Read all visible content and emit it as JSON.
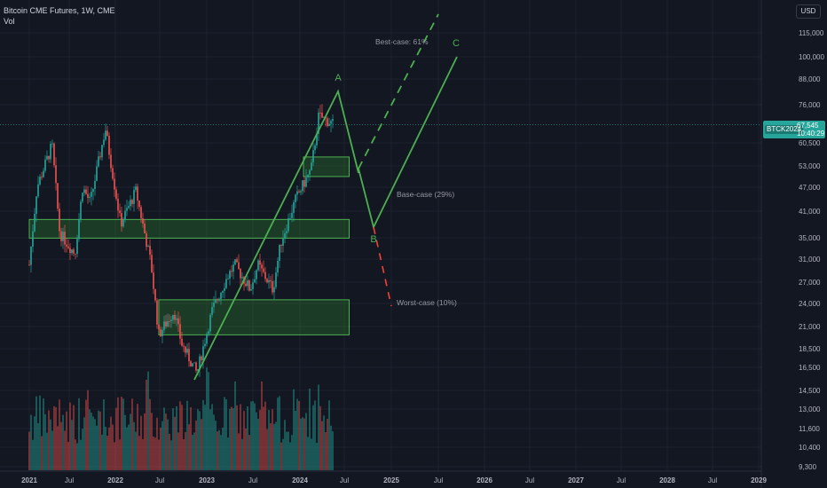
{
  "header": {
    "title": "Bitcoin CME Futures, 1W, CME",
    "indicator": "Vol",
    "currency": "USD"
  },
  "price_tag": {
    "symbol": "BTCK2024",
    "price": "67,545",
    "countdown": "10:40:29"
  },
  "colors": {
    "up": "#26a69a",
    "down": "#ef5350",
    "pattern": "#4caf50",
    "zone_fill": "#2e7d32",
    "worst": "#f44336",
    "bg": "#131722"
  },
  "chart_data": {
    "type": "candlestick",
    "y_axis": {
      "scale": "log",
      "ticks": [
        115000,
        100000,
        88000,
        76000,
        67545,
        60500,
        53000,
        47000,
        41000,
        35000,
        31000,
        27000,
        24000,
        21000,
        18500,
        16500,
        14500,
        13000,
        11600,
        10400,
        9300
      ],
      "tick_labels": [
        "115,000",
        "100,000",
        "88,000",
        "76,000",
        "67,545",
        "60,500",
        "53,000",
        "47,000",
        "41,000",
        "35,000",
        "31,000",
        "27,000",
        "24,000",
        "21,000",
        "18,500",
        "16,500",
        "14,500",
        "13,000",
        "11,600",
        "10,400",
        "9,300"
      ]
    },
    "x_axis": {
      "tick_labels": [
        "2021",
        "Jul",
        "2022",
        "Jul",
        "2023",
        "Jul",
        "2024",
        "Jul",
        "2025",
        "Jul",
        "2026",
        "Jul",
        "2027",
        "Jul",
        "2028",
        "Jul",
        "2029"
      ]
    },
    "price_path": [
      [
        "2021-01",
        30000
      ],
      [
        "2021-02",
        47000
      ],
      [
        "2021-04",
        60000
      ],
      [
        "2021-05",
        36000
      ],
      [
        "2021-07",
        32000
      ],
      [
        "2021-08",
        47000
      ],
      [
        "2021-09",
        43000
      ],
      [
        "2021-11",
        66000
      ],
      [
        "2022-01",
        38000
      ],
      [
        "2022-03",
        46000
      ],
      [
        "2022-05",
        30000
      ],
      [
        "2022-06",
        20000
      ],
      [
        "2022-08",
        23000
      ],
      [
        "2022-09",
        19000
      ],
      [
        "2022-11",
        16000
      ],
      [
        "2023-01",
        23000
      ],
      [
        "2023-03",
        28000
      ],
      [
        "2023-04",
        30000
      ],
      [
        "2023-06",
        26000
      ],
      [
        "2023-07",
        30000
      ],
      [
        "2023-09",
        26000
      ],
      [
        "2023-10",
        34000
      ],
      [
        "2023-12",
        44000
      ],
      [
        "2024-02",
        52000
      ],
      [
        "2024-03",
        71000
      ],
      [
        "2024-05",
        67545
      ]
    ],
    "zones": [
      {
        "from": "2021-01",
        "to": "2024-07",
        "low": 35000,
        "high": 39000
      },
      {
        "from": "2022-06",
        "to": "2024-07",
        "low": 20000,
        "high": 24500
      },
      {
        "from": "2024-01",
        "to": "2024-07",
        "low": 50000,
        "high": 56000
      }
    ],
    "pattern_points": [
      {
        "label": "A",
        "date": "2024-05",
        "price": 82000
      },
      {
        "label": "B",
        "date": "2024-11",
        "price": 37000
      },
      {
        "label": "C",
        "date": "2025-07",
        "price": 100000
      }
    ],
    "scenarios": [
      {
        "label": "Best-case: 61%",
        "style": "dashed",
        "color": "green"
      },
      {
        "label": "Base-case (29%)",
        "style": "solid",
        "color": "green"
      },
      {
        "label": "Worst-case (10%)",
        "style": "dashed",
        "color": "red"
      }
    ]
  }
}
